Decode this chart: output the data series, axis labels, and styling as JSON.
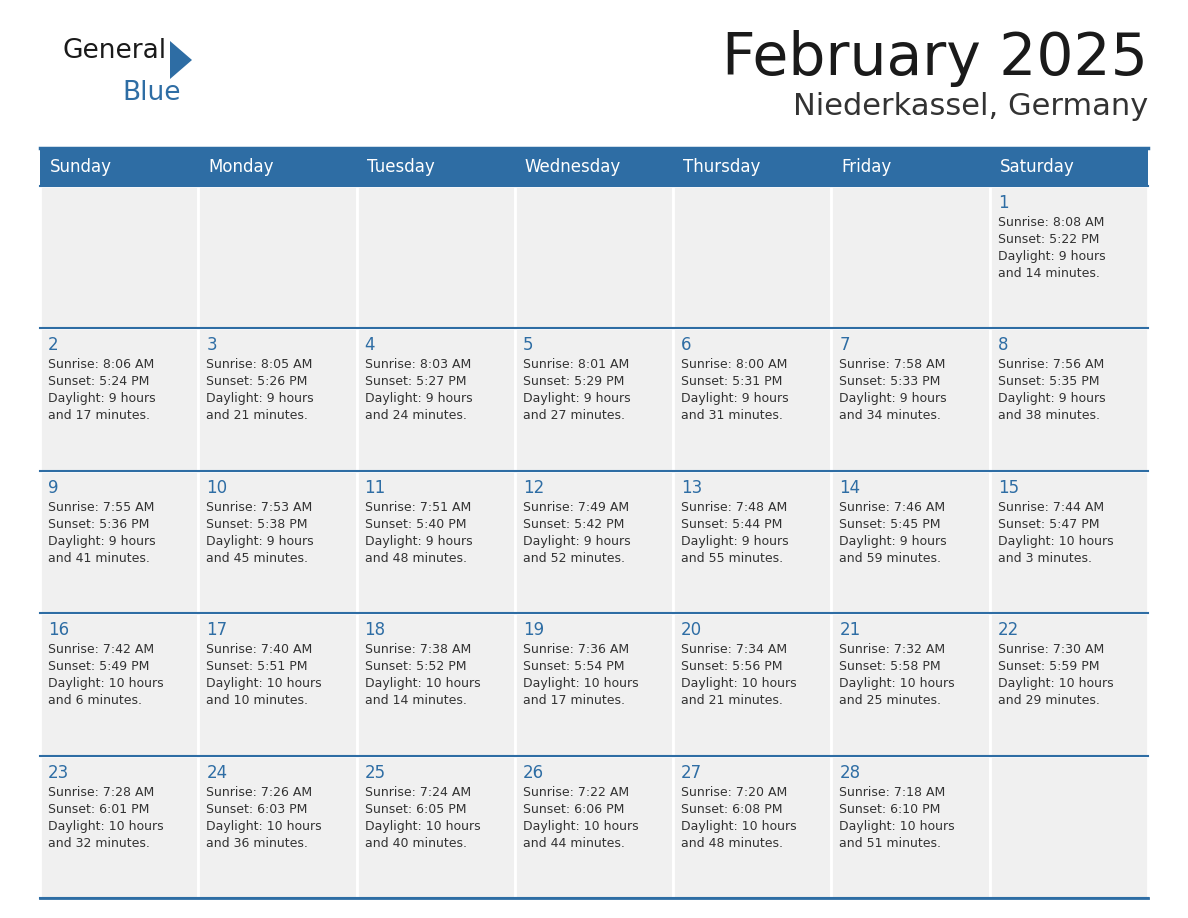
{
  "title": "February 2025",
  "subtitle": "Niederkassel, Germany",
  "header_bg": "#2E6DA4",
  "header_text_color": "#FFFFFF",
  "cell_bg": "#F0F0F0",
  "border_color": "#2E6DA4",
  "text_color": "#333333",
  "day_number_color": "#2E6DA4",
  "title_color": "#1a1a1a",
  "subtitle_color": "#333333",
  "logo_general_color": "#1a1a1a",
  "logo_blue_color": "#2E6DA4",
  "day_headers": [
    "Sunday",
    "Monday",
    "Tuesday",
    "Wednesday",
    "Thursday",
    "Friday",
    "Saturday"
  ],
  "calendar_data": [
    [
      {
        "day": "",
        "info": ""
      },
      {
        "day": "",
        "info": ""
      },
      {
        "day": "",
        "info": ""
      },
      {
        "day": "",
        "info": ""
      },
      {
        "day": "",
        "info": ""
      },
      {
        "day": "",
        "info": ""
      },
      {
        "day": "1",
        "info": "Sunrise: 8:08 AM\nSunset: 5:22 PM\nDaylight: 9 hours\nand 14 minutes."
      }
    ],
    [
      {
        "day": "2",
        "info": "Sunrise: 8:06 AM\nSunset: 5:24 PM\nDaylight: 9 hours\nand 17 minutes."
      },
      {
        "day": "3",
        "info": "Sunrise: 8:05 AM\nSunset: 5:26 PM\nDaylight: 9 hours\nand 21 minutes."
      },
      {
        "day": "4",
        "info": "Sunrise: 8:03 AM\nSunset: 5:27 PM\nDaylight: 9 hours\nand 24 minutes."
      },
      {
        "day": "5",
        "info": "Sunrise: 8:01 AM\nSunset: 5:29 PM\nDaylight: 9 hours\nand 27 minutes."
      },
      {
        "day": "6",
        "info": "Sunrise: 8:00 AM\nSunset: 5:31 PM\nDaylight: 9 hours\nand 31 minutes."
      },
      {
        "day": "7",
        "info": "Sunrise: 7:58 AM\nSunset: 5:33 PM\nDaylight: 9 hours\nand 34 minutes."
      },
      {
        "day": "8",
        "info": "Sunrise: 7:56 AM\nSunset: 5:35 PM\nDaylight: 9 hours\nand 38 minutes."
      }
    ],
    [
      {
        "day": "9",
        "info": "Sunrise: 7:55 AM\nSunset: 5:36 PM\nDaylight: 9 hours\nand 41 minutes."
      },
      {
        "day": "10",
        "info": "Sunrise: 7:53 AM\nSunset: 5:38 PM\nDaylight: 9 hours\nand 45 minutes."
      },
      {
        "day": "11",
        "info": "Sunrise: 7:51 AM\nSunset: 5:40 PM\nDaylight: 9 hours\nand 48 minutes."
      },
      {
        "day": "12",
        "info": "Sunrise: 7:49 AM\nSunset: 5:42 PM\nDaylight: 9 hours\nand 52 minutes."
      },
      {
        "day": "13",
        "info": "Sunrise: 7:48 AM\nSunset: 5:44 PM\nDaylight: 9 hours\nand 55 minutes."
      },
      {
        "day": "14",
        "info": "Sunrise: 7:46 AM\nSunset: 5:45 PM\nDaylight: 9 hours\nand 59 minutes."
      },
      {
        "day": "15",
        "info": "Sunrise: 7:44 AM\nSunset: 5:47 PM\nDaylight: 10 hours\nand 3 minutes."
      }
    ],
    [
      {
        "day": "16",
        "info": "Sunrise: 7:42 AM\nSunset: 5:49 PM\nDaylight: 10 hours\nand 6 minutes."
      },
      {
        "day": "17",
        "info": "Sunrise: 7:40 AM\nSunset: 5:51 PM\nDaylight: 10 hours\nand 10 minutes."
      },
      {
        "day": "18",
        "info": "Sunrise: 7:38 AM\nSunset: 5:52 PM\nDaylight: 10 hours\nand 14 minutes."
      },
      {
        "day": "19",
        "info": "Sunrise: 7:36 AM\nSunset: 5:54 PM\nDaylight: 10 hours\nand 17 minutes."
      },
      {
        "day": "20",
        "info": "Sunrise: 7:34 AM\nSunset: 5:56 PM\nDaylight: 10 hours\nand 21 minutes."
      },
      {
        "day": "21",
        "info": "Sunrise: 7:32 AM\nSunset: 5:58 PM\nDaylight: 10 hours\nand 25 minutes."
      },
      {
        "day": "22",
        "info": "Sunrise: 7:30 AM\nSunset: 5:59 PM\nDaylight: 10 hours\nand 29 minutes."
      }
    ],
    [
      {
        "day": "23",
        "info": "Sunrise: 7:28 AM\nSunset: 6:01 PM\nDaylight: 10 hours\nand 32 minutes."
      },
      {
        "day": "24",
        "info": "Sunrise: 7:26 AM\nSunset: 6:03 PM\nDaylight: 10 hours\nand 36 minutes."
      },
      {
        "day": "25",
        "info": "Sunrise: 7:24 AM\nSunset: 6:05 PM\nDaylight: 10 hours\nand 40 minutes."
      },
      {
        "day": "26",
        "info": "Sunrise: 7:22 AM\nSunset: 6:06 PM\nDaylight: 10 hours\nand 44 minutes."
      },
      {
        "day": "27",
        "info": "Sunrise: 7:20 AM\nSunset: 6:08 PM\nDaylight: 10 hours\nand 48 minutes."
      },
      {
        "day": "28",
        "info": "Sunrise: 7:18 AM\nSunset: 6:10 PM\nDaylight: 10 hours\nand 51 minutes."
      },
      {
        "day": "",
        "info": ""
      }
    ]
  ]
}
